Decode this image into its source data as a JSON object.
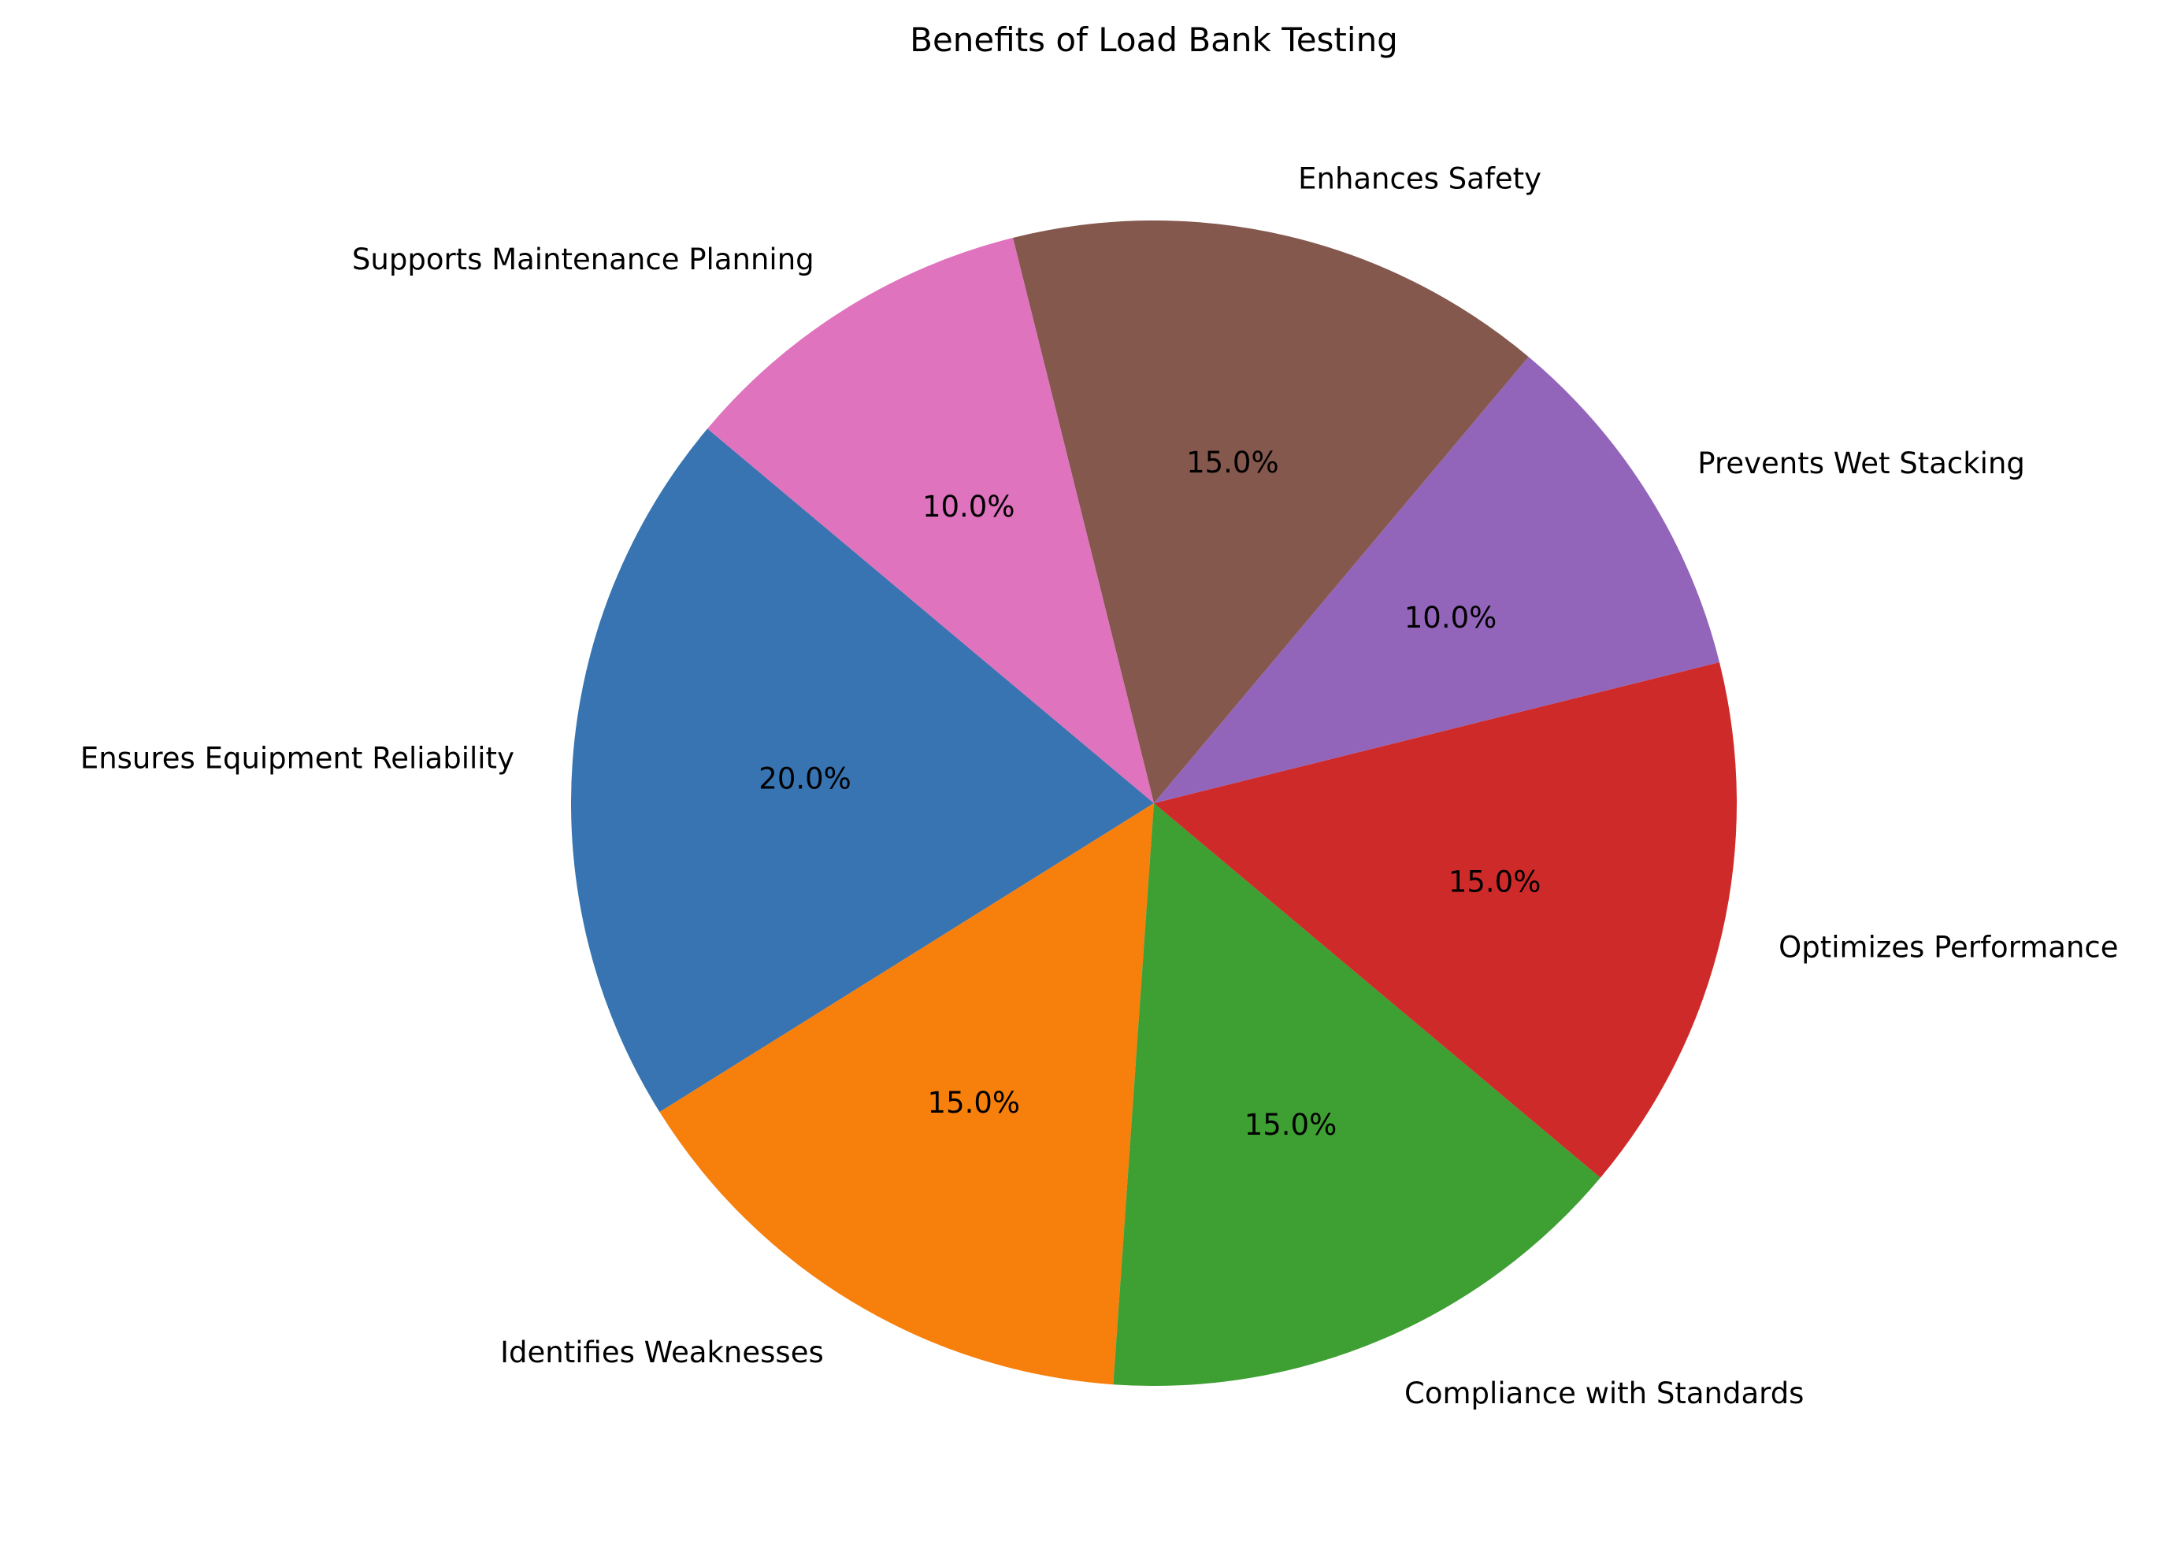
{
  "chart_data": {
    "type": "pie",
    "title": "Benefits of Load Bank Testing",
    "autopct_format": "{v}%",
    "start_angle_deg": 140,
    "direction": "counterclockwise",
    "slices": [
      {
        "label": "Ensures Equipment Reliability",
        "value": 20.0,
        "pct_label": "20.0%",
        "color": "#3774b1"
      },
      {
        "label": "Identifies Weaknesses",
        "value": 15.0,
        "pct_label": "15.0%",
        "color": "#f77f0c"
      },
      {
        "label": "Compliance with Standards",
        "value": 15.0,
        "pct_label": "15.0%",
        "color": "#3e9f32"
      },
      {
        "label": "Optimizes Performance",
        "value": 15.0,
        "pct_label": "15.0%",
        "color": "#cf2a2a"
      },
      {
        "label": "Prevents Wet Stacking",
        "value": 10.0,
        "pct_label": "10.0%",
        "color": "#9265ba"
      },
      {
        "label": "Enhances Safety",
        "value": 15.0,
        "pct_label": "15.0%",
        "color": "#85584e"
      },
      {
        "label": "Supports Maintenance Planning",
        "value": 10.0,
        "pct_label": "10.0%",
        "color": "#df73bd"
      }
    ],
    "legend": "none"
  }
}
